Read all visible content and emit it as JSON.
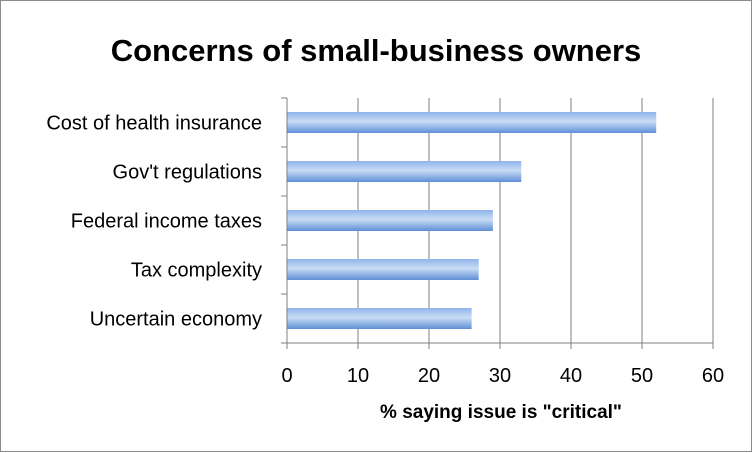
{
  "chart_data": {
    "type": "bar",
    "orientation": "horizontal",
    "title": "Concerns of small-business owners",
    "xlabel": "% saying issue is \"critical\"",
    "ylabel": "",
    "categories": [
      "Cost of health insurance",
      "Gov't regulations",
      "Federal income taxes",
      "Tax complexity",
      "Uncertain economy"
    ],
    "values": [
      52,
      33,
      29,
      27,
      26
    ],
    "xlim": [
      0,
      60
    ],
    "xticks": [
      0,
      10,
      20,
      30,
      40,
      50,
      60
    ],
    "grid": true,
    "legend": "none",
    "colors": {
      "bar_light": "#c9dcf5",
      "bar_mid": "#8fb4ea",
      "bar_dark": "#5f8fd6",
      "grid": "#7f7f7f",
      "axis": "#7f7f7f"
    }
  }
}
